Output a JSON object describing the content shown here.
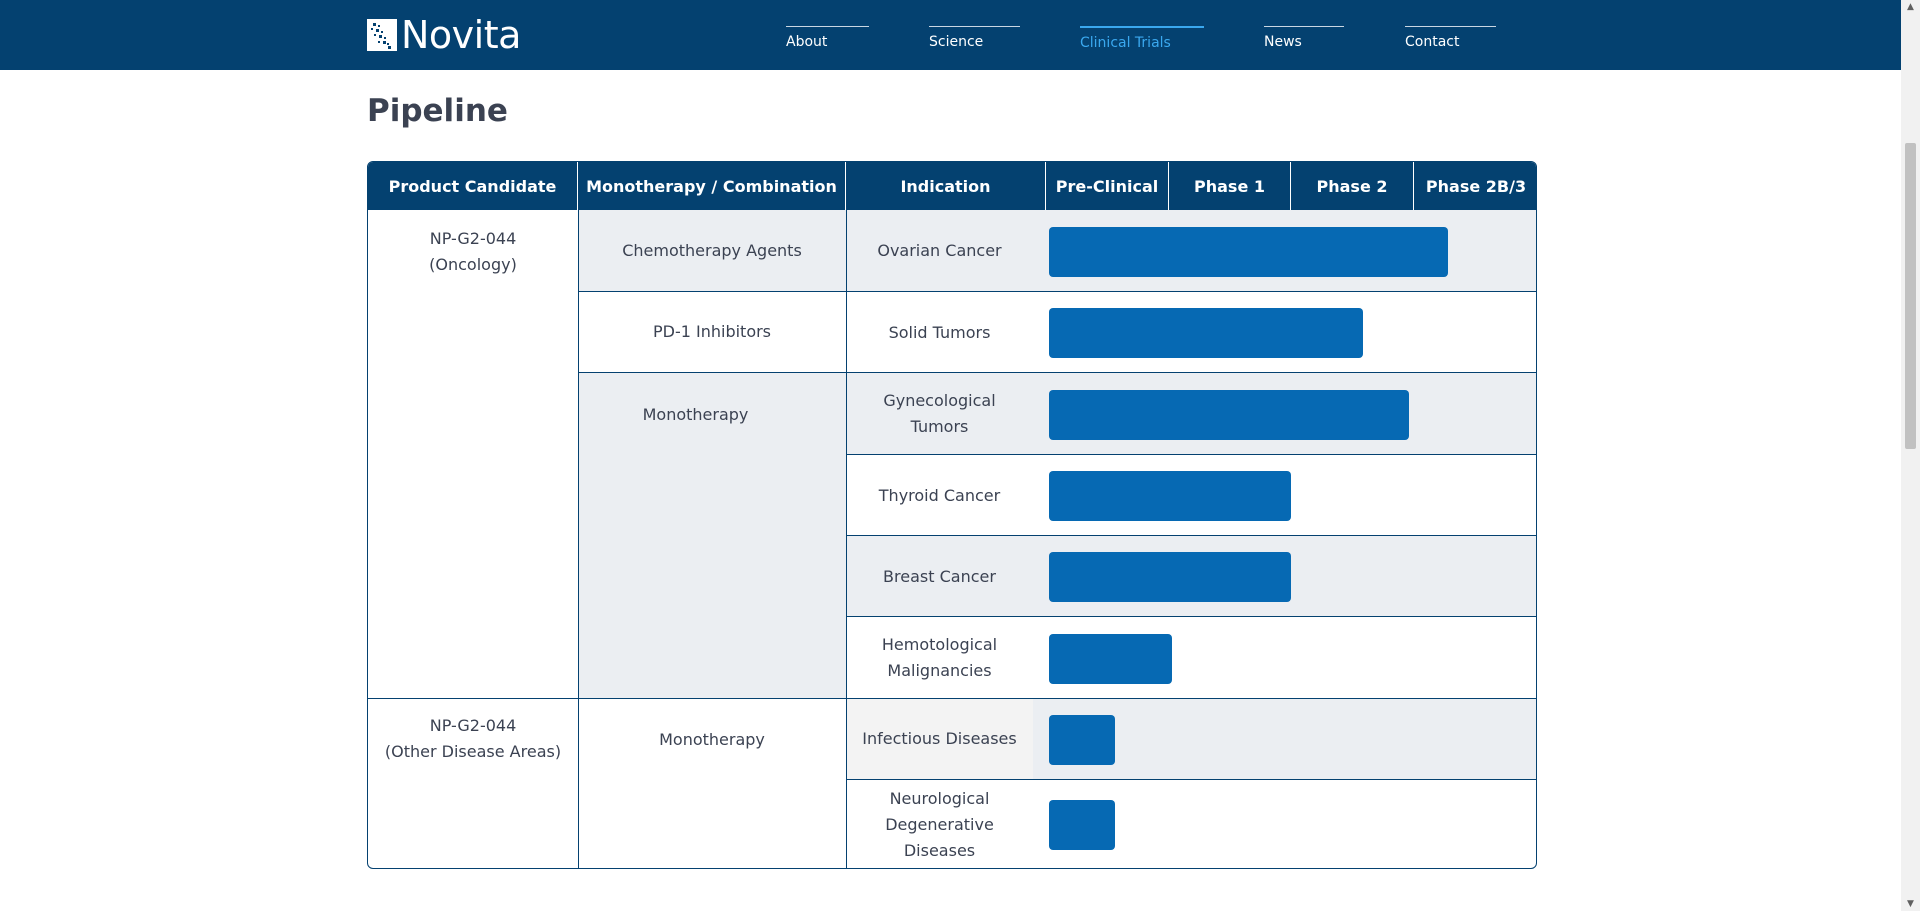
{
  "header": {
    "logo_text": "Novita",
    "bg_color": "#044170",
    "nav": [
      {
        "label": "About",
        "active": false
      },
      {
        "label": "Science",
        "active": false
      },
      {
        "label": "Clinical Trials",
        "active": true
      },
      {
        "label": "News",
        "active": false
      },
      {
        "label": "Contact",
        "active": false
      }
    ]
  },
  "page": {
    "title": "Pipeline"
  },
  "pipeline": {
    "columns": [
      "Product Candidate",
      "Monotherapy / Combination",
      "Indication",
      "Pre-Clinical",
      "Phase 1",
      "Phase 2",
      "Phase 2B/3"
    ],
    "candidates": [
      {
        "line1": "NP-G2-044",
        "line2": "(Oncology)"
      },
      {
        "line1": "NP-G2-044",
        "line2": "(Other Disease Areas)"
      }
    ],
    "therapies": [
      "Chemotherapy Agents",
      "PD-1 Inhibitors",
      "Monotherapy",
      "Monotherapy"
    ],
    "rows": [
      {
        "indication_1": "Ovarian Cancer",
        "indication_2": "",
        "progress_phases": 3.24
      },
      {
        "indication_1": "Solid Tumors",
        "indication_2": "",
        "progress_phases": 2.55
      },
      {
        "indication_1": "Gynecological",
        "indication_2": "Tumors",
        "progress_phases": 2.93
      },
      {
        "indication_1": "Thyroid Cancer",
        "indication_2": "",
        "progress_phases": 1.97
      },
      {
        "indication_1": "Breast Cancer",
        "indication_2": "",
        "progress_phases": 1.97
      },
      {
        "indication_1": "Hemotological",
        "indication_2": "Malignancies",
        "progress_phases": 1.0
      },
      {
        "indication_1": "Infectious Diseases",
        "indication_2": "",
        "progress_phases": 0.54
      },
      {
        "indication_1": "Neurological",
        "indication_2": "Degenerative",
        "indication_3": "Diseases",
        "progress_phases": 0.54
      }
    ],
    "bar_color": "#0669b3",
    "stripe_color": "#ebeef2"
  }
}
